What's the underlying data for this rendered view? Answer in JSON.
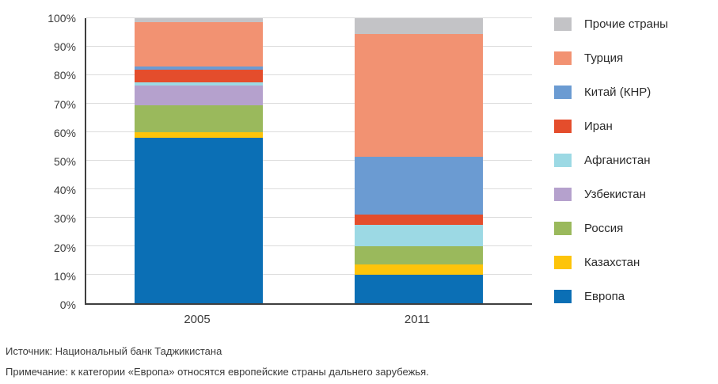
{
  "chart_data": {
    "type": "bar",
    "stacked": true,
    "orientation": "vertical",
    "categories": [
      "2005",
      "2011"
    ],
    "series": [
      {
        "name": "Европа",
        "color": "#0b6fb5",
        "values": [
          58.0,
          10.0
        ]
      },
      {
        "name": "Казахстан",
        "color": "#fdc40a",
        "values": [
          2.0,
          3.5
        ]
      },
      {
        "name": "Россия",
        "color": "#9ab95c",
        "values": [
          9.5,
          6.5
        ]
      },
      {
        "name": "Узбекистан",
        "color": "#b5a1cd",
        "values": [
          7.0,
          0.0
        ]
      },
      {
        "name": "Афганистан",
        "color": "#9cd9e4",
        "values": [
          1.0,
          7.5
        ]
      },
      {
        "name": "Иран",
        "color": "#e44d2c",
        "values": [
          4.5,
          3.5
        ]
      },
      {
        "name": "Китай (КНР)",
        "color": "#6b9bd2",
        "values": [
          1.0,
          20.5
        ]
      },
      {
        "name": "Турция",
        "color": "#f29272",
        "values": [
          15.5,
          43.0
        ]
      },
      {
        "name": "Прочие страны",
        "color": "#c3c3c6",
        "values": [
          1.5,
          5.5
        ]
      }
    ],
    "title": "",
    "xlabel": "",
    "ylabel": "",
    "ylim": [
      0,
      100
    ],
    "y_tick_step": 10,
    "y_tick_labels": [
      "0%",
      "10%",
      "20%",
      "30%",
      "40%",
      "50%",
      "60%",
      "70%",
      "80%",
      "90%",
      "100%"
    ],
    "grid": true,
    "legend_position": "right",
    "legend_order": "reversed",
    "axis_color": "#3f3f3f",
    "gridline_color": "#dcdcdc"
  },
  "footnotes": {
    "source": "Источник: Национальный банк Таджикистана",
    "note": "Примечание: к категории «Европа» относятся европейские страны дальнего зарубежья."
  }
}
